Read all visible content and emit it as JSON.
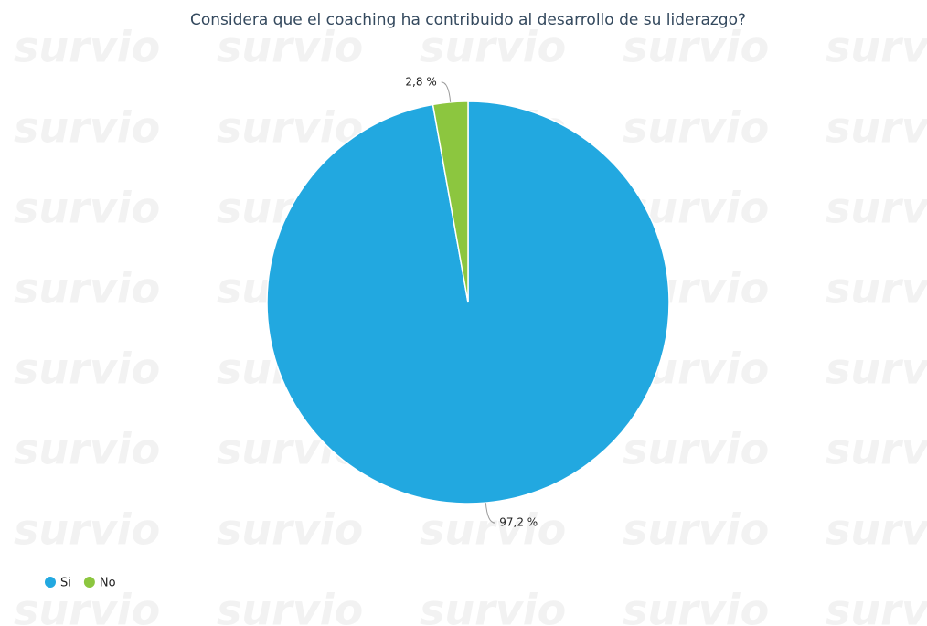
{
  "chart_data": {
    "type": "pie",
    "title": "Considera que el coaching ha contribuido al desarrollo de su liderazgo?",
    "categories": [
      "Si",
      "No"
    ],
    "values": [
      97.2,
      2.8
    ],
    "value_labels": [
      "97,2 %",
      "2,8 %"
    ],
    "colors": [
      "#22a8e0",
      "#8cc63f"
    ],
    "legend": "bottom-left",
    "watermark": "survio"
  }
}
